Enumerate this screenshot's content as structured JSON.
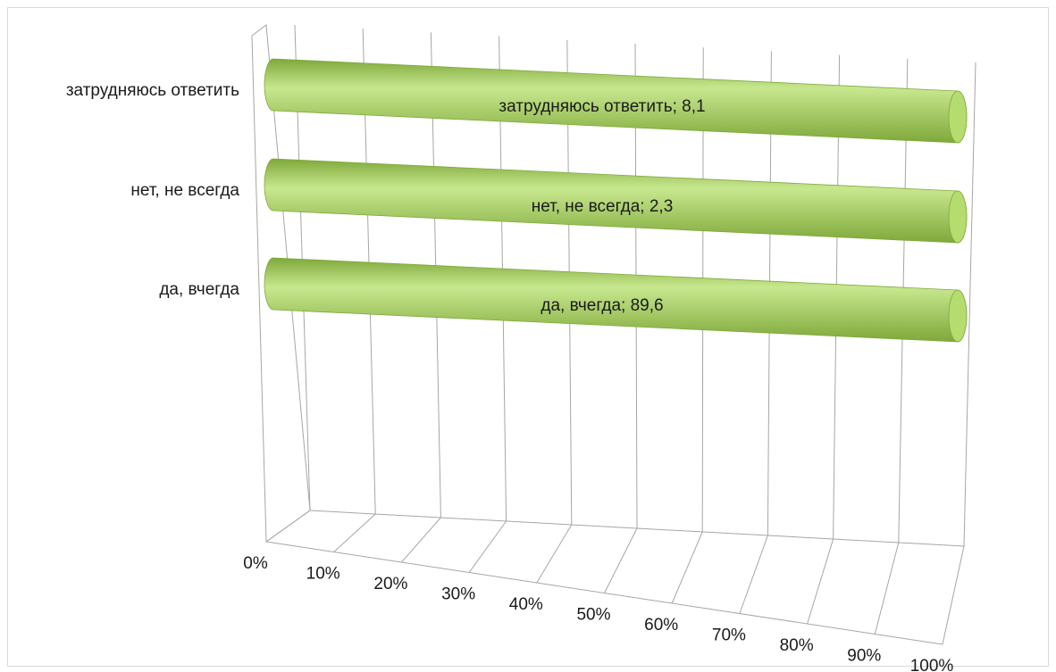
{
  "chart_data": {
    "type": "bar",
    "orientation": "horizontal",
    "style": "3d-cylinder-100-percent",
    "categories": [
      "затрудняюсь ответить",
      "нет, не всегда",
      "да, вчегда"
    ],
    "values": [
      8.1,
      2.3,
      89.6
    ],
    "data_labels": [
      "затрудняюсь ответить; 8,1",
      "нет, не всегда; 2,3",
      "да, вчегда; 89,6"
    ],
    "x_ticks": [
      "0%",
      "10%",
      "20%",
      "30%",
      "40%",
      "50%",
      "60%",
      "70%",
      "80%",
      "90%",
      "100%"
    ],
    "xlim": [
      0,
      100
    ],
    "grid": true,
    "legend": "none",
    "title": "",
    "xlabel": "",
    "ylabel": "",
    "colors": {
      "bar_fill": "#a9d160",
      "bar_highlight": "#c8e88f",
      "bar_shadow": "#7fa83a",
      "bar_cap": "#b5dc6e",
      "gridline": "#a6a6a6",
      "border": "#d9d9d9"
    }
  }
}
